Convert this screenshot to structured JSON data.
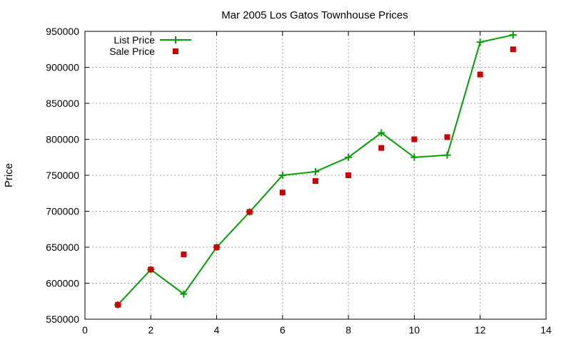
{
  "chart_data": {
    "type": "line",
    "title": "Mar 2005 Los Gatos Townhouse Prices",
    "xlabel": "",
    "ylabel": "Price",
    "xlim": [
      0,
      14
    ],
    "ylim": [
      550000,
      950000
    ],
    "x_ticks": [
      "0",
      "2",
      "4",
      "6",
      "8",
      "10",
      "12",
      "14"
    ],
    "y_ticks": [
      "550000",
      "600000",
      "650000",
      "700000",
      "750000",
      "800000",
      "850000",
      "900000",
      "950000"
    ],
    "grid": true,
    "legend_position": "top-left",
    "x": [
      1,
      2,
      3,
      4,
      5,
      6,
      7,
      8,
      9,
      10,
      11,
      12,
      13
    ],
    "series": [
      {
        "name": "List Price",
        "style": "lines+points",
        "marker": "plus",
        "color": "#00a000",
        "values": [
          570000,
          619000,
          585000,
          650000,
          699000,
          750000,
          755000,
          775000,
          809000,
          775000,
          778000,
          935000,
          945000
        ]
      },
      {
        "name": "Sale Price",
        "style": "points",
        "marker": "square",
        "color": "#cc0000",
        "values": [
          570000,
          619000,
          640000,
          650000,
          699000,
          726000,
          742000,
          750000,
          788000,
          800000,
          803000,
          890000,
          925000
        ]
      }
    ]
  }
}
